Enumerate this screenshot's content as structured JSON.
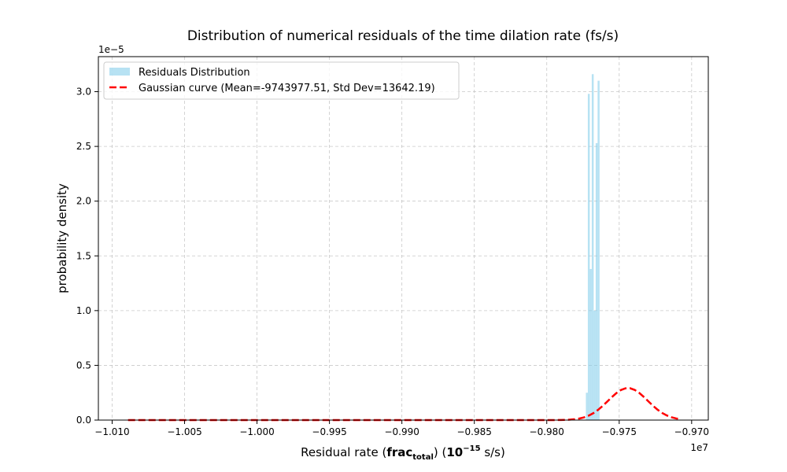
{
  "chart_data": {
    "type": "histogram",
    "title": "Distribution of numerical residuals of the time dilation rate (fs/s)",
    "xlabel": {
      "prefix": "Residual rate (",
      "frac": "frac",
      "sub": "total",
      "mid": ") (",
      "base": "10",
      "exp": "−15",
      "suffix": " s/s)"
    },
    "ylabel": "probability density",
    "x_offset_label": "1e7",
    "y_offset_label": "1e−5",
    "xlim": [
      -1.01095,
      -0.96885
    ],
    "ylim": [
      0,
      3.32
    ],
    "x_ticks": [
      -1.01,
      -1.005,
      -1.0,
      -0.995,
      -0.99,
      -0.985,
      -0.98,
      -0.975,
      -0.97
    ],
    "x_tick_labels": [
      "−1.010",
      "−1.005",
      "−1.000",
      "−0.995",
      "−0.990",
      "−0.985",
      "−0.980",
      "−0.975",
      "−0.970"
    ],
    "y_ticks": [
      0,
      0.5,
      1.0,
      1.5,
      2.0,
      2.5,
      3.0
    ],
    "y_tick_labels": [
      "0.0",
      "0.5",
      "1.0",
      "1.5",
      "2.0",
      "2.5",
      "3.0"
    ],
    "grid": true,
    "legend_position": "upper-left",
    "histogram": {
      "name": "Residuals Distribution",
      "color": "#87ceeb",
      "bin_start": -0.9773,
      "bin_width": 0.000135,
      "values": [
        0.25,
        2.98,
        1.38,
        3.16,
        1.0,
        2.53,
        3.1
      ]
    },
    "gaussian": {
      "name": "Gaussian curve (Mean=-9743977.51, Std Dev=13642.19)",
      "color": "#ff0000",
      "mean": -0.974397751,
      "std": 0.001364219,
      "x_range": [
        -1.0089,
        -0.97075
      ],
      "line_style": "dashed"
    }
  }
}
